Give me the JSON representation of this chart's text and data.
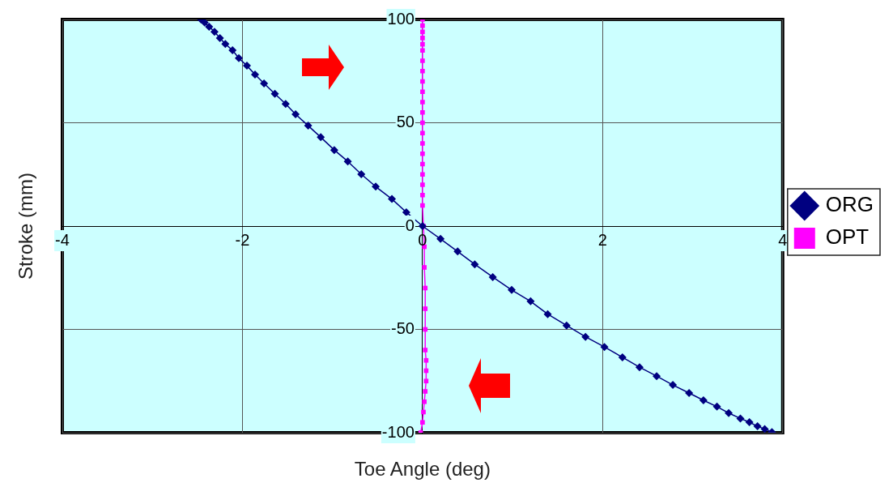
{
  "chart_data": {
    "type": "line",
    "xlabel": "Toe Angle (deg)",
    "ylabel": "Stroke (mm)",
    "xlim": [
      -4,
      4
    ],
    "ylim": [
      -100,
      100
    ],
    "xticks": [
      -4,
      -2,
      0,
      2,
      4
    ],
    "yticks": [
      -100,
      -50,
      0,
      50,
      100
    ],
    "grid": true,
    "legend": "right",
    "line_style": "solid",
    "series": [
      {
        "name": "ORG",
        "color": "#000080",
        "marker": "diamond",
        "x": [
          -2.46,
          -2.42,
          -2.37,
          -2.31,
          -2.25,
          -2.19,
          -2.11,
          -2.04,
          -1.95,
          -1.86,
          -1.76,
          -1.64,
          -1.52,
          -1.41,
          -1.27,
          -1.13,
          -0.98,
          -0.83,
          -0.68,
          -0.52,
          -0.34,
          -0.18,
          0,
          0.2,
          0.39,
          0.58,
          0.78,
          0.99,
          1.2,
          1.39,
          1.6,
          1.81,
          2.02,
          2.22,
          2.41,
          2.6,
          2.78,
          2.96,
          3.12,
          3.27,
          3.4,
          3.53,
          3.63,
          3.72,
          3.8,
          3.88
        ],
        "values": [
          100,
          98.5,
          96.5,
          94,
          91,
          88.1,
          85.1,
          81.3,
          77.6,
          73.3,
          69,
          64,
          59.1,
          54.1,
          48.6,
          43,
          36.8,
          31.3,
          25.1,
          19.1,
          13.1,
          6.7,
          0,
          -6.2,
          -12.3,
          -18.5,
          -24.7,
          -30.9,
          -36.4,
          -42.6,
          -48.1,
          -53.6,
          -58.5,
          -63.5,
          -68.3,
          -72.6,
          -76.9,
          -80.8,
          -84.3,
          -87.4,
          -90.5,
          -93.1,
          -94.9,
          -96.9,
          -98.2,
          -99.7
        ]
      },
      {
        "name": "OPT",
        "color": "#ff00ff",
        "marker": "square",
        "x": [
          0,
          0,
          0,
          0,
          0,
          0,
          0,
          0,
          0,
          0,
          0,
          0,
          0,
          0,
          0,
          0,
          0,
          0,
          0,
          0,
          0,
          0.01,
          0.02,
          0.02,
          0.03,
          0.03,
          0.03,
          0.03,
          0.04,
          0.04,
          0.04,
          0.03,
          0.02,
          0.01,
          0,
          -0.02
        ],
        "values": [
          100,
          97,
          94,
          91,
          88,
          85,
          80,
          75,
          70,
          65,
          60,
          55,
          50,
          45,
          40,
          35,
          30,
          25,
          20,
          15,
          10,
          0,
          -10,
          -20,
          -30,
          -40,
          -50,
          -60,
          -65,
          -70,
          -75,
          -80,
          -85,
          -90,
          -95,
          -100
        ]
      }
    ]
  }
}
